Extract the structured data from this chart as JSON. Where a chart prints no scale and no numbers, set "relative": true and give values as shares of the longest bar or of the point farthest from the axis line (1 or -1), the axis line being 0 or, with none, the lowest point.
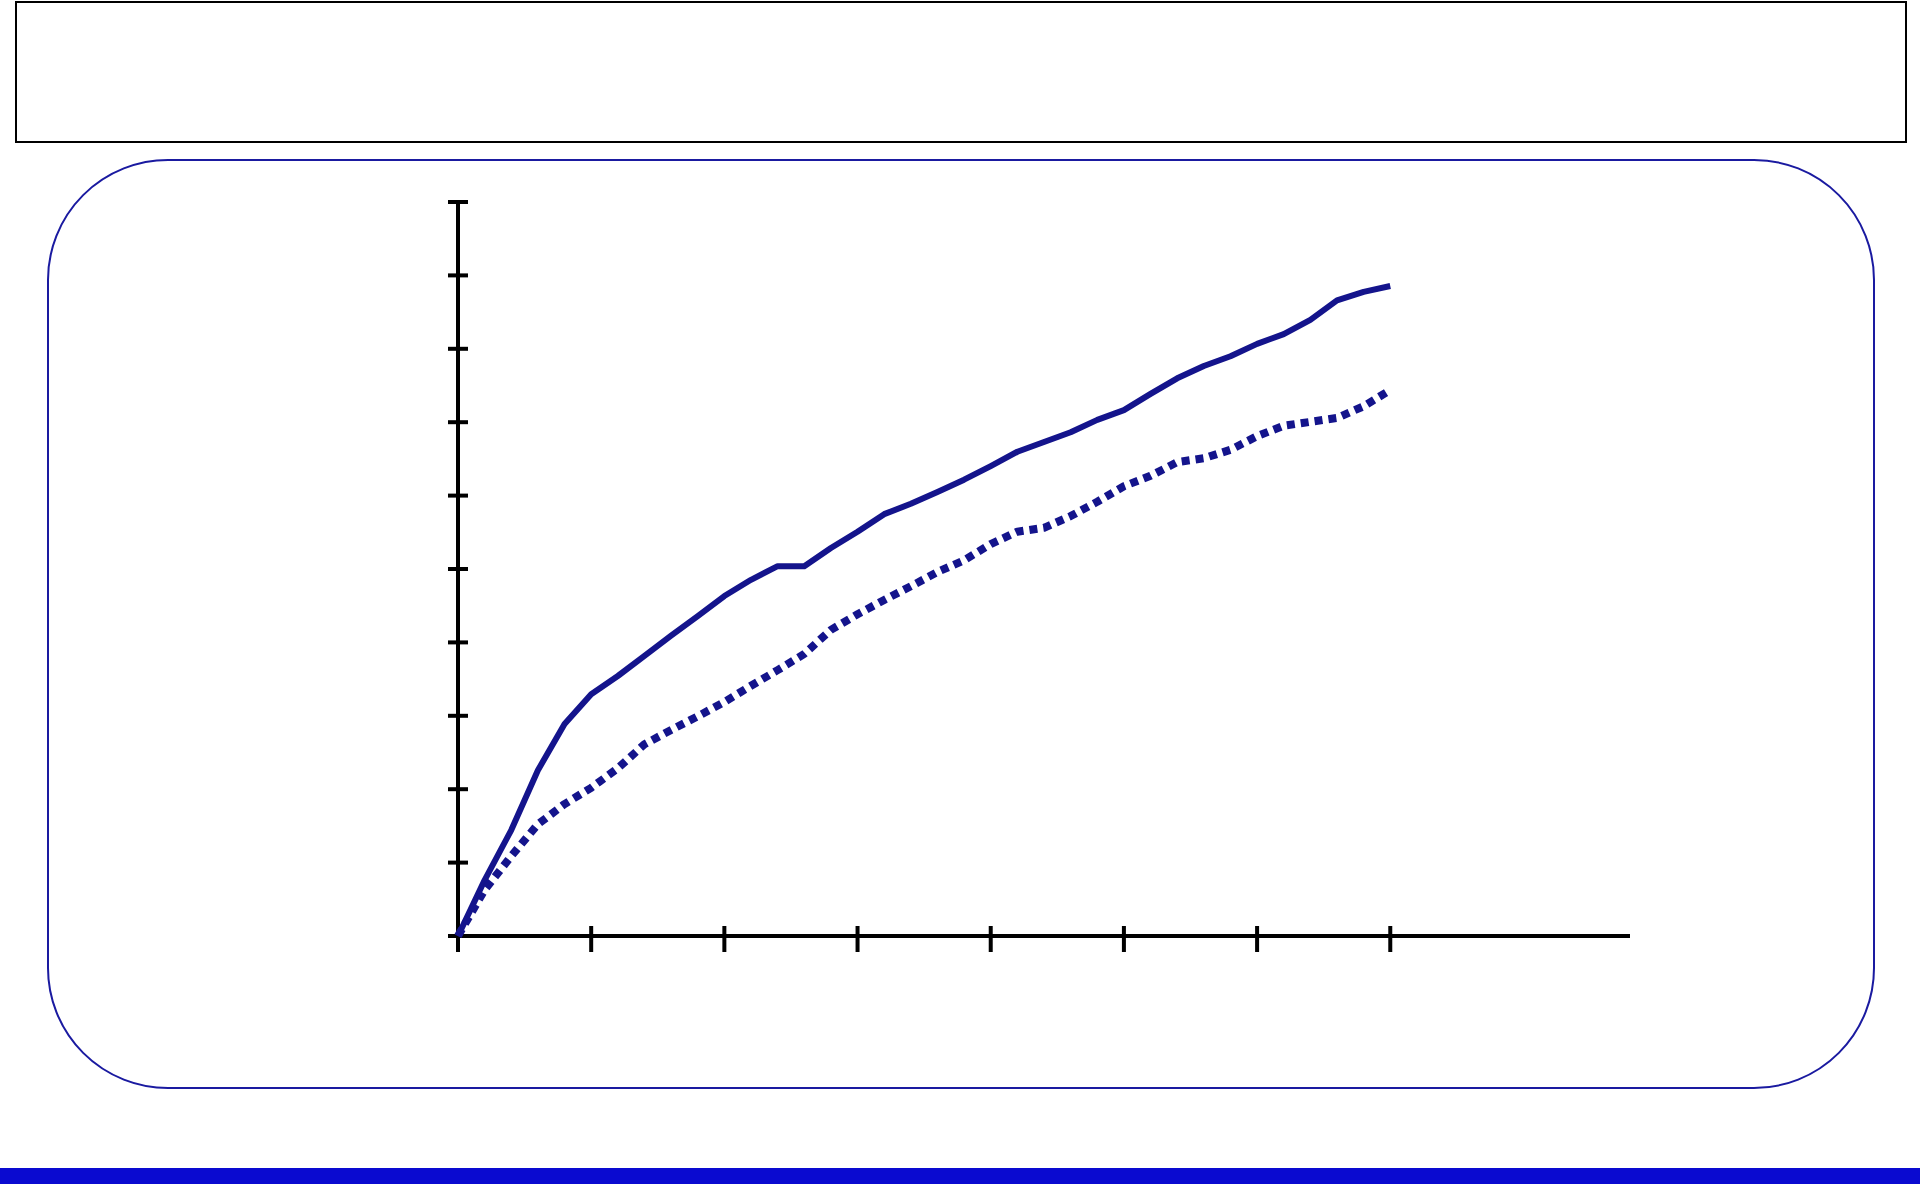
{
  "chart_data": {
    "type": "line",
    "relative": true,
    "categories": [
      null,
      null,
      null,
      null,
      null,
      null,
      null,
      null,
      null,
      null,
      null,
      null,
      null,
      null,
      null,
      null,
      null,
      null,
      null,
      null,
      null,
      null,
      null,
      null,
      null,
      null,
      null,
      null,
      null,
      null,
      null,
      null,
      null,
      null,
      null,
      null,
      null,
      null,
      null,
      null,
      null,
      null,
      null,
      null,
      null
    ],
    "series": [
      {
        "color": "#14148c",
        "line_style": "solid",
        "values": [
          0,
          0.086,
          0.163,
          0.255,
          0.326,
          0.372,
          0.4,
          0.431,
          0.462,
          0.492,
          0.523,
          0.548,
          0.569,
          0.569,
          0.597,
          0.622,
          0.649,
          0.665,
          0.683,
          0.702,
          0.723,
          0.745,
          0.76,
          0.775,
          0.794,
          0.809,
          0.834,
          0.858,
          0.877,
          0.892,
          0.911,
          0.926,
          0.948,
          0.978,
          0.991,
          1,
          null,
          null,
          null,
          null,
          null,
          null,
          null,
          null,
          null
        ]
      },
      {
        "color": "#14148c",
        "line_style": "dotted",
        "values": [
          0,
          0.071,
          0.123,
          0.172,
          0.203,
          0.228,
          0.258,
          0.295,
          0.317,
          0.338,
          0.36,
          0.385,
          0.409,
          0.434,
          0.471,
          0.495,
          0.517,
          0.538,
          0.56,
          0.578,
          0.603,
          0.622,
          0.628,
          0.646,
          0.668,
          0.692,
          0.708,
          0.729,
          0.735,
          0.748,
          0.769,
          0.785,
          0.791,
          0.797,
          0.815,
          0.84,
          null,
          null,
          null,
          null,
          null,
          null,
          null,
          null,
          null
        ]
      }
    ]
  }
}
